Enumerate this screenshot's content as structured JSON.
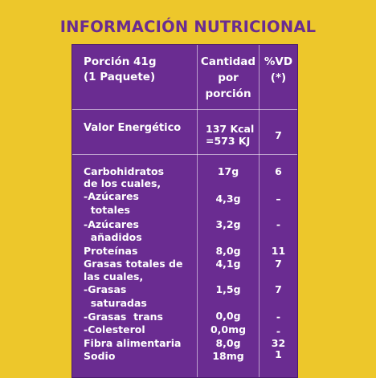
{
  "title": "INFORMACIÓN NUTRICIONAL",
  "header": {
    "portion_line1": "Porción 41g",
    "portion_line2": "(1 Paquete)",
    "amount_line1": "Cantidad",
    "amount_line2": "por",
    "amount_line3": "porción",
    "vd_line1": "%VD",
    "vd_line2": "(*)"
  },
  "energy": {
    "label": "Valor Energético",
    "amount_line1": "137 Kcal",
    "amount_line2": "=573 KJ",
    "vd": "7"
  },
  "rows": [
    {
      "label_line1": "Carbohidratos",
      "label_line2": "de los cuales,",
      "amount": "17g",
      "vd": "6"
    },
    {
      "label_line1": "-Azúcares",
      "label_line2": "  totales",
      "amount": "4,3g",
      "vd": "–"
    },
    {
      "label_line1": "-Azúcares",
      "label_line2": "  añadidos",
      "amount": "3,2g",
      "vd": "-"
    },
    {
      "label_line1": "Proteínas",
      "amount": "8,0g",
      "vd": "11"
    },
    {
      "label_line1": "Grasas totales de",
      "label_line2": "las cuales,",
      "amount": "4,1g",
      "vd": "7"
    },
    {
      "label_line1": "-Grasas",
      "label_line2": "  saturadas",
      "amount": "1,5g",
      "vd": "7"
    },
    {
      "label_line1": "-Grasas  trans",
      "amount": "0,0g",
      "vd": "-"
    },
    {
      "label_line1": "-Colesterol",
      "amount": "0,0mg",
      "vd": "-"
    },
    {
      "label_line1": "Fibra alimentaria",
      "amount": "8,0g",
      "vd": "32"
    },
    {
      "label_line1": "Sodio",
      "amount": "18mg",
      "vd": "1"
    }
  ],
  "colors": {
    "background": "#EDC72B",
    "panel": "#6A2C91",
    "text": "#FFFFFF",
    "title": "#6A2C91"
  }
}
